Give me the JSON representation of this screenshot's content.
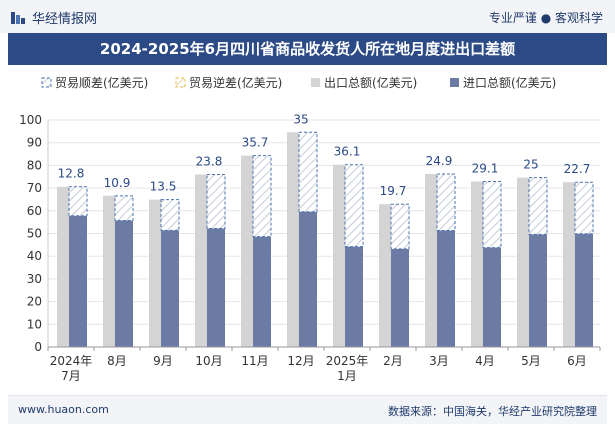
{
  "header": {
    "brand": "华经情报网",
    "tagline": "专业严谨 ● 客观科学"
  },
  "footer": {
    "site": "www.huaon.com",
    "source": "数据来源：中国海关，华经产业研究院整理"
  },
  "colors": {
    "title_bg": "#2b4a86",
    "export": "#d4d4d4",
    "import": "#6b7ba3",
    "surplus_stroke": "#4b74b0",
    "deficit_stroke": "#e8c04a"
  },
  "chart_data": {
    "type": "bar",
    "title": "2024-2025年6月四川省商品收发货人所在地月度进出口差额",
    "categories": [
      "2024年\n7月",
      "8月",
      "9月",
      "10月",
      "11月",
      "12月",
      "2025年\n1月",
      "2月",
      "3月",
      "4月",
      "5月",
      "6月"
    ],
    "series": [
      {
        "name": "贸易顺差(亿美元)",
        "values": [
          12.8,
          10.9,
          13.5,
          23.8,
          35.7,
          35,
          36.1,
          19.7,
          24.9,
          29.1,
          25,
          22.7
        ]
      },
      {
        "name": "贸易逆差(亿美元)",
        "values": [
          0,
          0,
          0,
          0,
          0,
          0,
          0,
          0,
          0,
          0,
          0,
          0
        ]
      },
      {
        "name": "出口总额(亿美元)",
        "values": [
          70.6,
          66.6,
          64.9,
          76.0,
          84.3,
          94.6,
          80.3,
          62.9,
          76.2,
          72.9,
          74.6,
          72.6
        ]
      },
      {
        "name": "进口总额(亿美元)",
        "values": [
          57.8,
          55.7,
          51.4,
          52.2,
          48.6,
          59.6,
          44.2,
          43.2,
          51.3,
          43.8,
          49.6,
          49.9
        ]
      }
    ],
    "data_labels": [
      "12.8",
      "10.9",
      "13.5",
      "23.8",
      "35.7",
      "35",
      "36.1",
      "19.7",
      "24.9",
      "29.1",
      "25",
      "22.7"
    ],
    "y_ticks": [
      "0",
      "10",
      "20",
      "30",
      "40",
      "50",
      "60",
      "70",
      "80",
      "90",
      "100"
    ],
    "ylim": [
      0,
      100
    ],
    "legend_position": "top"
  }
}
